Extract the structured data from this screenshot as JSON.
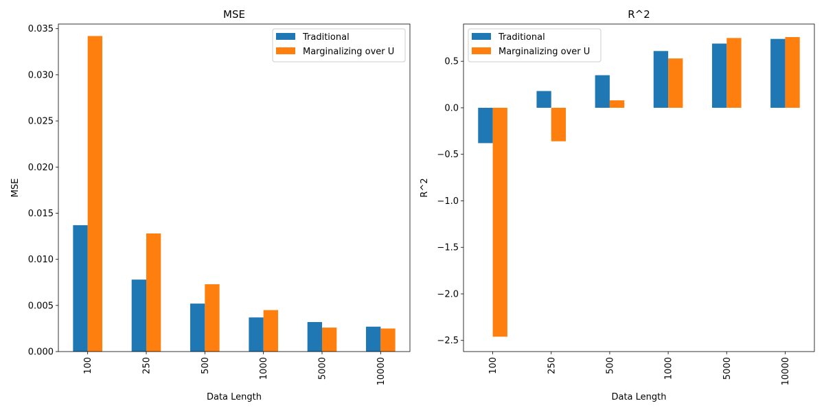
{
  "chart_data": [
    {
      "type": "bar",
      "title": "MSE",
      "xlabel": "Data Length",
      "ylabel": "MSE",
      "categories": [
        "100",
        "250",
        "500",
        "1000",
        "5000",
        "10000"
      ],
      "series": [
        {
          "name": "Traditional",
          "color": "#1f77b4",
          "values": [
            0.0137,
            0.0078,
            0.0052,
            0.0037,
            0.0032,
            0.0027
          ]
        },
        {
          "name": "Marginalizing over U",
          "color": "#ff7f0e",
          "values": [
            0.0342,
            0.0128,
            0.0073,
            0.0045,
            0.0026,
            0.0025
          ]
        }
      ],
      "ylim": [
        0,
        0.0355
      ],
      "yticks": [
        0.0,
        0.005,
        0.01,
        0.015,
        0.02,
        0.025,
        0.03,
        0.035
      ],
      "ytick_labels": [
        "0.000",
        "0.005",
        "0.010",
        "0.015",
        "0.020",
        "0.025",
        "0.030",
        "0.035"
      ],
      "legend_position": "top-right",
      "grid": false
    },
    {
      "type": "bar",
      "title": "R^2",
      "xlabel": "Data Length",
      "ylabel": "R^2",
      "categories": [
        "100",
        "250",
        "500",
        "1000",
        "5000",
        "10000"
      ],
      "series": [
        {
          "name": "Traditional",
          "color": "#1f77b4",
          "values": [
            -0.38,
            0.18,
            0.35,
            0.61,
            0.69,
            0.74
          ]
        },
        {
          "name": "Marginalizing over U",
          "color": "#ff7f0e",
          "values": [
            -2.46,
            -0.36,
            0.08,
            0.53,
            0.75,
            0.76
          ]
        }
      ],
      "ylim": [
        -2.62,
        0.9
      ],
      "yticks": [
        -2.5,
        -2.0,
        -1.5,
        -1.0,
        -0.5,
        0.0,
        0.5
      ],
      "ytick_labels": [
        "−2.5",
        "−2.0",
        "−1.5",
        "−1.0",
        "−0.5",
        "0.0",
        "0.5"
      ],
      "legend_position": "top-left",
      "grid": false
    }
  ]
}
